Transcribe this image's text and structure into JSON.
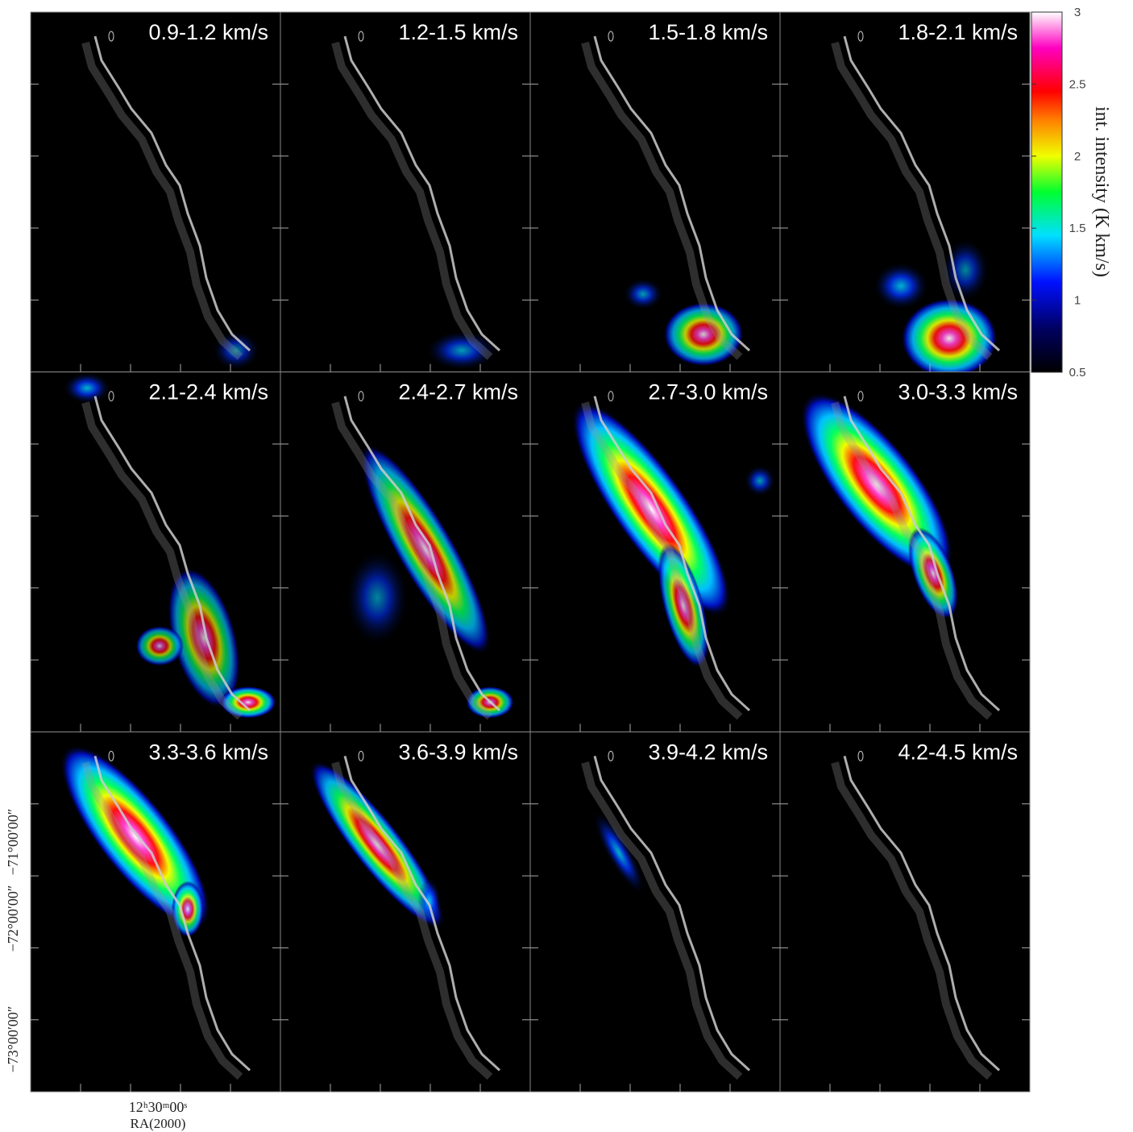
{
  "chart_data": {
    "type": "channel-maps",
    "panels": [
      "0.9-1.2 km/s",
      "1.2-1.5 km/s",
      "1.5-1.8 km/s",
      "1.8-2.1 km/s",
      "2.1-2.4 km/s",
      "2.4-2.7 km/s",
      "2.7-3.0 km/s",
      "3.0-3.3 km/s",
      "3.3-3.6 km/s",
      "3.6-3.9 km/s",
      "3.9-4.2 km/s",
      "4.2-4.5 km/s"
    ],
    "colorbar": {
      "label": "int. intensity (K km/s)",
      "lim": [
        0.5,
        3
      ],
      "ticks": [
        0.5,
        1,
        1.5,
        2,
        2.5,
        3
      ]
    },
    "yticks": [
      "−71°00′00″",
      "−72°00′00″",
      "−73°00′00″"
    ],
    "xticks": [
      "12ʰ30ᵐ00ˢ"
    ],
    "xlabel": "RA(2000)"
  }
}
